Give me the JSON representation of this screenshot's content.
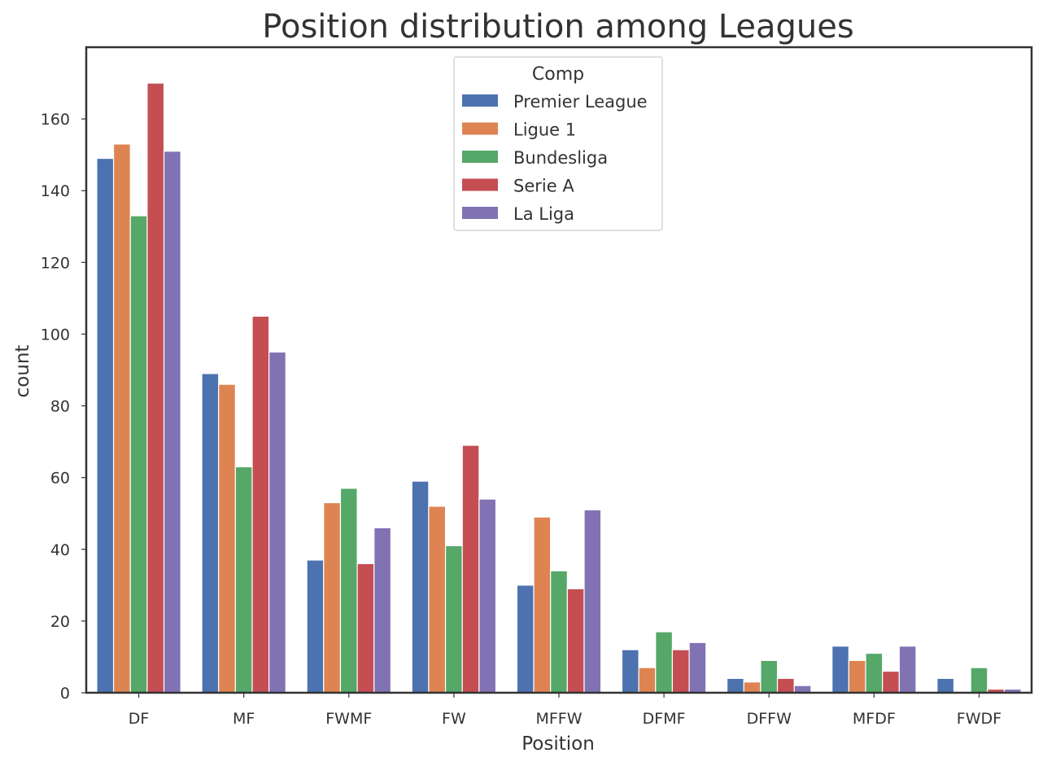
{
  "chart_data": {
    "type": "bar",
    "title": "Position distribution among Leagues",
    "xlabel": "Position",
    "ylabel": "count",
    "ylim": [
      0,
      180
    ],
    "yticks": [
      0,
      20,
      40,
      60,
      80,
      100,
      120,
      140,
      160
    ],
    "grid": false,
    "legend": {
      "title": "Comp",
      "placement": "top-center"
    },
    "categories": [
      "DF",
      "MF",
      "FWMF",
      "FW",
      "MFFW",
      "DFMF",
      "DFFW",
      "MFDF",
      "FWDF"
    ],
    "series": [
      {
        "name": "Premier League",
        "color": "#4c72b0",
        "values": [
          149,
          89,
          37,
          59,
          30,
          12,
          4,
          13,
          4
        ]
      },
      {
        "name": "Ligue 1",
        "color": "#dd8452",
        "values": [
          153,
          86,
          53,
          52,
          49,
          7,
          3,
          9,
          0
        ]
      },
      {
        "name": "Bundesliga",
        "color": "#55a868",
        "values": [
          133,
          63,
          57,
          41,
          34,
          17,
          9,
          11,
          7
        ]
      },
      {
        "name": "Serie A",
        "color": "#c44e52",
        "values": [
          170,
          105,
          36,
          69,
          29,
          12,
          4,
          6,
          1
        ]
      },
      {
        "name": "La Liga",
        "color": "#8172b3",
        "values": [
          151,
          95,
          46,
          54,
          51,
          14,
          2,
          13,
          1
        ]
      }
    ]
  }
}
